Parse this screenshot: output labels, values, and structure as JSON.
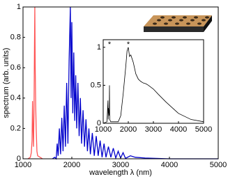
{
  "chart_data": [
    {
      "type": "line",
      "x_label": "wavelength λ (nm)",
      "y_label": "spectrum (arb. units)",
      "xlim": [
        1000,
        5000
      ],
      "ylim": [
        0,
        1
      ],
      "xticks": [
        1000,
        2000,
        3000,
        4000,
        5000
      ],
      "yticks": [
        0,
        0.2,
        0.4,
        0.6,
        0.8,
        1
      ],
      "series": [
        {
          "color": "#ff5555",
          "x": [
            1100,
            1150,
            1170,
            1185,
            1195,
            1205,
            1215,
            1225,
            1235,
            1242,
            1250,
            1260,
            1270,
            1285,
            1300,
            1350,
            1400
          ],
          "values": [
            0,
            0.01,
            0.04,
            0.12,
            0.38,
            0.2,
            0.08,
            0.3,
            0.75,
            1.0,
            0.6,
            0.35,
            0.2,
            0.05,
            0.02,
            0.01,
            0
          ]
        },
        {
          "color": "#0000cc",
          "x": [
            1600,
            1650,
            1680,
            1700,
            1720,
            1745,
            1770,
            1795,
            1820,
            1845,
            1870,
            1895,
            1920,
            1945,
            1970,
            1985,
            2000,
            2020,
            2040,
            2060,
            2080,
            2100,
            2125,
            2150,
            2175,
            2200,
            2230,
            2260,
            2290,
            2320,
            2350,
            2380,
            2420,
            2460,
            2500,
            2540,
            2580,
            2620,
            2660,
            2700,
            2750,
            2800,
            2850,
            2900,
            2950,
            3000,
            3050,
            3100,
            3200,
            3300,
            3500,
            4000,
            5000
          ],
          "values": [
            0,
            0.01,
            0,
            0.1,
            0.02,
            0.2,
            0.03,
            0.27,
            0.05,
            0.35,
            0.08,
            0.5,
            0.1,
            0.65,
            1.0,
            0.4,
            0.9,
            0.3,
            0.7,
            0.25,
            0.55,
            0.2,
            0.5,
            0.15,
            0.4,
            0.1,
            0.32,
            0.08,
            0.26,
            0.05,
            0.2,
            0.03,
            0.17,
            0.02,
            0.15,
            0.02,
            0.12,
            0.01,
            0.1,
            0.01,
            0.08,
            0.01,
            0.07,
            0.005,
            0.05,
            0.005,
            0.04,
            0.003,
            0.02,
            0.01,
            0.005,
            0,
            0
          ]
        }
      ]
    },
    {
      "type": "line",
      "xlim": [
        1000,
        5000
      ],
      "ylim": [
        0,
        1.1
      ],
      "xticks": [
        1000,
        2000,
        3000,
        4000,
        5000
      ],
      "yticks": [
        0,
        0.5,
        1
      ],
      "annotations": [
        {
          "text": "*",
          "x": 1250
        },
        {
          "text": "*",
          "x": 2000
        }
      ],
      "series": [
        {
          "color": "#000000",
          "x": [
            1000,
            1150,
            1190,
            1200,
            1210,
            1240,
            1250,
            1260,
            1300,
            1600,
            1700,
            1800,
            1900,
            1950,
            2000,
            2050,
            2100,
            2200,
            2300,
            2400,
            2500,
            2600,
            2700,
            2800,
            3000,
            3200,
            3500,
            4000,
            4500,
            5000
          ],
          "values": [
            0,
            0.02,
            0.3,
            0.05,
            0.2,
            0.1,
            0.5,
            0.05,
            0.02,
            0.02,
            0.1,
            0.4,
            0.75,
            0.95,
            1.0,
            0.88,
            0.9,
            0.8,
            0.65,
            0.58,
            0.55,
            0.53,
            0.52,
            0.5,
            0.45,
            0.38,
            0.28,
            0.13,
            0.05,
            0.02
          ]
        }
      ]
    }
  ]
}
